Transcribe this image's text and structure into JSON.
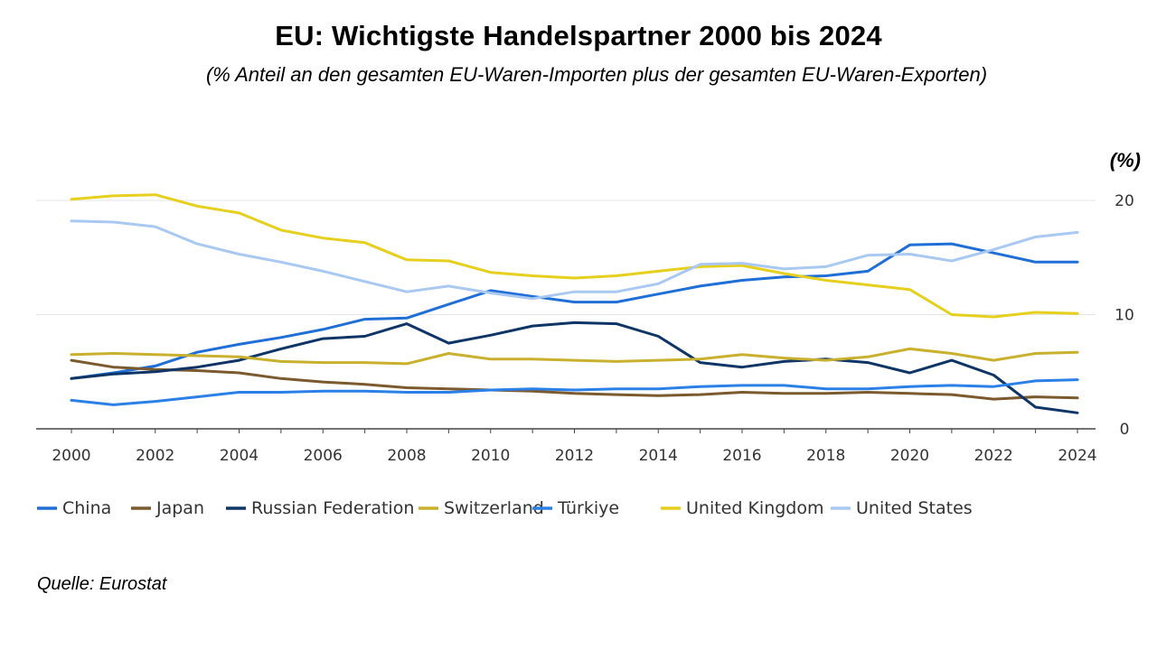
{
  "title": "EU: Wichtigste Handelspartner 2000 bis 2024",
  "subtitle": "(% Anteil an den gesamten EU-Waren-Importen plus der gesamten EU-Waren-Exporten)",
  "source": "Quelle: Eurostat",
  "chart_data": {
    "type": "line",
    "unit_label": "(%)",
    "x": [
      2000,
      2001,
      2002,
      2003,
      2004,
      2005,
      2006,
      2007,
      2008,
      2009,
      2010,
      2011,
      2012,
      2013,
      2014,
      2015,
      2016,
      2017,
      2018,
      2019,
      2020,
      2021,
      2022,
      2023,
      2024
    ],
    "x_tick_labels": [
      "2000",
      "2002",
      "2004",
      "2006",
      "2008",
      "2010",
      "2012",
      "2014",
      "2016",
      "2018",
      "2020",
      "2022",
      "2024"
    ],
    "y_tick_labels": [
      "0",
      "10",
      "20"
    ],
    "ylim": [
      0,
      20
    ],
    "y_axis_position": "right",
    "grid": true,
    "legend_position": "bottom",
    "series": [
      {
        "name": "China",
        "color": "#1f6fd6",
        "values": [
          4.4,
          4.9,
          5.5,
          6.7,
          7.4,
          8.0,
          8.7,
          9.6,
          9.7,
          10.9,
          12.1,
          11.6,
          11.1,
          11.1,
          11.8,
          12.5,
          13.0,
          13.3,
          13.4,
          13.8,
          16.1,
          16.2,
          15.4,
          14.6,
          14.6
        ]
      },
      {
        "name": "Japan",
        "color": "#7a5a2e",
        "values": [
          6.0,
          5.4,
          5.2,
          5.1,
          4.9,
          4.4,
          4.1,
          3.9,
          3.6,
          3.5,
          3.4,
          3.3,
          3.1,
          3.0,
          2.9,
          3.0,
          3.2,
          3.1,
          3.1,
          3.2,
          3.1,
          3.0,
          2.6,
          2.8,
          2.7
        ]
      },
      {
        "name": "Russian Federation",
        "color": "#0e3566",
        "values": [
          4.4,
          4.8,
          5.0,
          5.4,
          6.0,
          7.0,
          7.9,
          8.1,
          9.2,
          7.5,
          8.2,
          9.0,
          9.3,
          9.2,
          8.1,
          5.8,
          5.4,
          5.9,
          6.1,
          5.8,
          4.9,
          6.0,
          4.7,
          1.9,
          1.4
        ]
      },
      {
        "name": "Switzerland",
        "color": "#c9b02e",
        "values": [
          6.5,
          6.6,
          6.5,
          6.4,
          6.3,
          5.9,
          5.8,
          5.8,
          5.7,
          6.6,
          6.1,
          6.1,
          6.0,
          5.9,
          6.0,
          6.1,
          6.5,
          6.2,
          6.0,
          6.3,
          7.0,
          6.6,
          6.0,
          6.6,
          6.7
        ]
      },
      {
        "name": "Türkiye",
        "color": "#2b80e8",
        "values": [
          2.5,
          2.1,
          2.4,
          2.8,
          3.2,
          3.2,
          3.3,
          3.3,
          3.2,
          3.2,
          3.4,
          3.5,
          3.4,
          3.5,
          3.5,
          3.7,
          3.8,
          3.8,
          3.5,
          3.5,
          3.7,
          3.8,
          3.7,
          4.2,
          4.3
        ]
      },
      {
        "name": "United Kingdom",
        "color": "#e6cf1d",
        "values": [
          20.1,
          20.4,
          20.5,
          19.5,
          18.9,
          17.4,
          16.7,
          16.3,
          14.8,
          14.7,
          13.7,
          13.4,
          13.2,
          13.4,
          13.8,
          14.2,
          14.3,
          13.6,
          13.0,
          12.6,
          12.2,
          10.0,
          9.8,
          10.2,
          10.1
        ]
      },
      {
        "name": "United States",
        "color": "#a9c8f2",
        "values": [
          18.2,
          18.1,
          17.7,
          16.2,
          15.3,
          14.6,
          13.8,
          12.9,
          12.0,
          12.5,
          11.9,
          11.4,
          12.0,
          12.0,
          12.7,
          14.4,
          14.5,
          14.0,
          14.2,
          15.2,
          15.3,
          14.7,
          15.7,
          16.8,
          17.2
        ]
      }
    ]
  }
}
